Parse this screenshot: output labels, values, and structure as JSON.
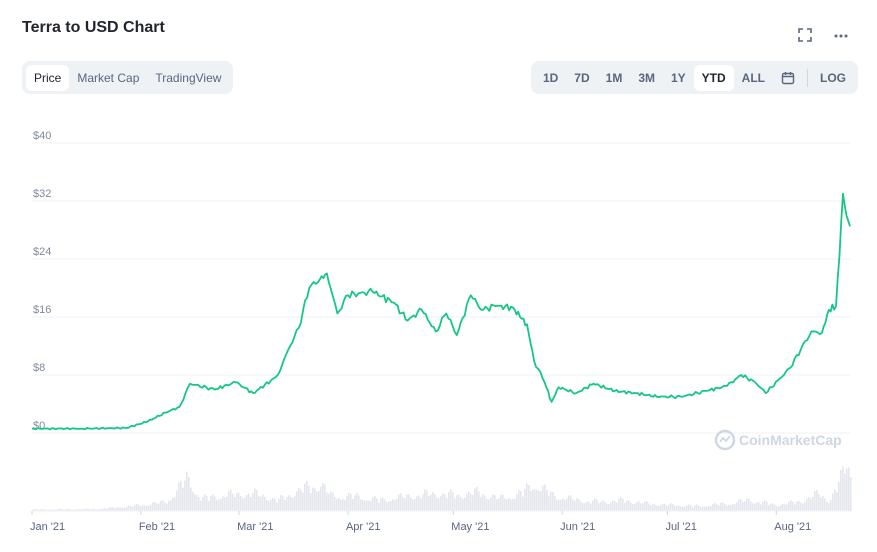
{
  "header": {
    "title": "Terra to USD Chart",
    "fullscreen_icon": "expand-icon",
    "more_icon": "more-dots-icon"
  },
  "tabs": [
    {
      "label": "Price",
      "active": true
    },
    {
      "label": "Market Cap",
      "active": false
    },
    {
      "label": "TradingView",
      "active": false
    }
  ],
  "ranges": [
    {
      "label": "1D",
      "active": false
    },
    {
      "label": "7D",
      "active": false
    },
    {
      "label": "1M",
      "active": false
    },
    {
      "label": "3M",
      "active": false
    },
    {
      "label": "1Y",
      "active": false
    },
    {
      "label": "YTD",
      "active": true
    },
    {
      "label": "ALL",
      "active": false
    }
  ],
  "calendar_icon": "calendar-icon",
  "log_label": "LOG",
  "watermark": "CoinMarketCap",
  "colors": {
    "line": "#16c784",
    "grid": "#eff2f5",
    "volume": "#e3e6ec"
  },
  "chart_data": {
    "type": "line",
    "ylim": [
      0,
      40
    ],
    "yticks": [
      0,
      8,
      16,
      24,
      32,
      40
    ],
    "ytick_labels": [
      "$0",
      "$8",
      "$16",
      "$24",
      "$32",
      "$40"
    ],
    "xlim": [
      "2021-01-01",
      "2021-08-22"
    ],
    "xticks": [
      "2021-01-01",
      "2021-02-01",
      "2021-03-01",
      "2021-04-01",
      "2021-05-01",
      "2021-06-01",
      "2021-07-01",
      "2021-08-01"
    ],
    "xtick_labels": [
      "Jan '21",
      "Feb '21",
      "Mar '21",
      "Apr '21",
      "May '21",
      "Jun '21",
      "Jul '21",
      "Aug '21"
    ],
    "grid": true,
    "series": [
      {
        "points": [
          [
            "2021-01-01",
            0.6
          ],
          [
            "2021-01-15",
            0.6
          ],
          [
            "2021-01-28",
            0.7
          ],
          [
            "2021-02-03",
            1.6
          ],
          [
            "2021-02-08",
            2.8
          ],
          [
            "2021-02-12",
            3.6
          ],
          [
            "2021-02-15",
            6.8
          ],
          [
            "2021-02-22",
            6.0
          ],
          [
            "2021-02-28",
            7.0
          ],
          [
            "2021-03-05",
            5.5
          ],
          [
            "2021-03-10",
            7.2
          ],
          [
            "2021-03-12",
            8.0
          ],
          [
            "2021-03-15",
            11.5
          ],
          [
            "2021-03-18",
            14.5
          ],
          [
            "2021-03-21",
            20.0
          ],
          [
            "2021-03-24",
            21.2
          ],
          [
            "2021-03-26",
            22.0
          ],
          [
            "2021-03-29",
            16.5
          ],
          [
            "2021-04-01",
            19.0
          ],
          [
            "2021-04-08",
            19.5
          ],
          [
            "2021-04-14",
            18.0
          ],
          [
            "2021-04-18",
            15.5
          ],
          [
            "2021-04-22",
            17.0
          ],
          [
            "2021-04-26",
            14.0
          ],
          [
            "2021-04-29",
            16.5
          ],
          [
            "2021-05-02",
            13.5
          ],
          [
            "2021-05-06",
            19.0
          ],
          [
            "2021-05-09",
            17.0
          ],
          [
            "2021-05-13",
            17.5
          ],
          [
            "2021-05-18",
            17.3
          ],
          [
            "2021-05-20",
            16.0
          ],
          [
            "2021-05-22",
            15.0
          ],
          [
            "2021-05-24",
            10.0
          ],
          [
            "2021-05-27",
            7.0
          ],
          [
            "2021-05-29",
            4.3
          ],
          [
            "2021-05-31",
            6.3
          ],
          [
            "2021-06-05",
            5.5
          ],
          [
            "2021-06-10",
            6.8
          ],
          [
            "2021-06-16",
            5.8
          ],
          [
            "2021-06-22",
            5.5
          ],
          [
            "2021-06-28",
            5.0
          ],
          [
            "2021-07-05",
            5.0
          ],
          [
            "2021-07-12",
            5.8
          ],
          [
            "2021-07-18",
            6.5
          ],
          [
            "2021-07-22",
            8.0
          ],
          [
            "2021-07-26",
            7.0
          ],
          [
            "2021-07-29",
            5.5
          ],
          [
            "2021-08-02",
            7.5
          ],
          [
            "2021-08-05",
            9.0
          ],
          [
            "2021-08-08",
            11.5
          ],
          [
            "2021-08-11",
            14.0
          ],
          [
            "2021-08-14",
            13.8
          ],
          [
            "2021-08-16",
            17.0
          ],
          [
            "2021-08-18",
            17.5
          ],
          [
            "2021-08-19",
            24.5
          ],
          [
            "2021-08-20",
            33.0
          ],
          [
            "2021-08-21",
            30.0
          ],
          [
            "2021-08-22",
            28.5
          ]
        ]
      }
    ],
    "volume": [
      [
        "2021-01-01",
        0.03
      ],
      [
        "2021-01-20",
        0.04
      ],
      [
        "2021-02-01",
        0.12
      ],
      [
        "2021-02-08",
        0.18
      ],
      [
        "2021-02-14",
        0.65
      ],
      [
        "2021-02-18",
        0.25
      ],
      [
        "2021-02-26",
        0.33
      ],
      [
        "2021-03-05",
        0.35
      ],
      [
        "2021-03-12",
        0.22
      ],
      [
        "2021-03-18",
        0.42
      ],
      [
        "2021-03-24",
        0.55
      ],
      [
        "2021-03-27",
        0.3
      ],
      [
        "2021-04-02",
        0.3
      ],
      [
        "2021-04-10",
        0.22
      ],
      [
        "2021-04-18",
        0.3
      ],
      [
        "2021-04-25",
        0.35
      ],
      [
        "2021-05-02",
        0.32
      ],
      [
        "2021-05-08",
        0.38
      ],
      [
        "2021-05-14",
        0.25
      ],
      [
        "2021-05-20",
        0.35
      ],
      [
        "2021-05-24",
        0.55
      ],
      [
        "2021-05-29",
        0.32
      ],
      [
        "2021-06-05",
        0.22
      ],
      [
        "2021-06-12",
        0.18
      ],
      [
        "2021-06-18",
        0.22
      ],
      [
        "2021-06-25",
        0.15
      ],
      [
        "2021-07-02",
        0.12
      ],
      [
        "2021-07-10",
        0.1
      ],
      [
        "2021-07-18",
        0.15
      ],
      [
        "2021-07-24",
        0.22
      ],
      [
        "2021-08-01",
        0.12
      ],
      [
        "2021-08-08",
        0.2
      ],
      [
        "2021-08-13",
        0.35
      ],
      [
        "2021-08-16",
        0.2
      ],
      [
        "2021-08-19",
        0.6
      ],
      [
        "2021-08-21",
        1.0
      ],
      [
        "2021-08-22",
        0.85
      ]
    ]
  }
}
